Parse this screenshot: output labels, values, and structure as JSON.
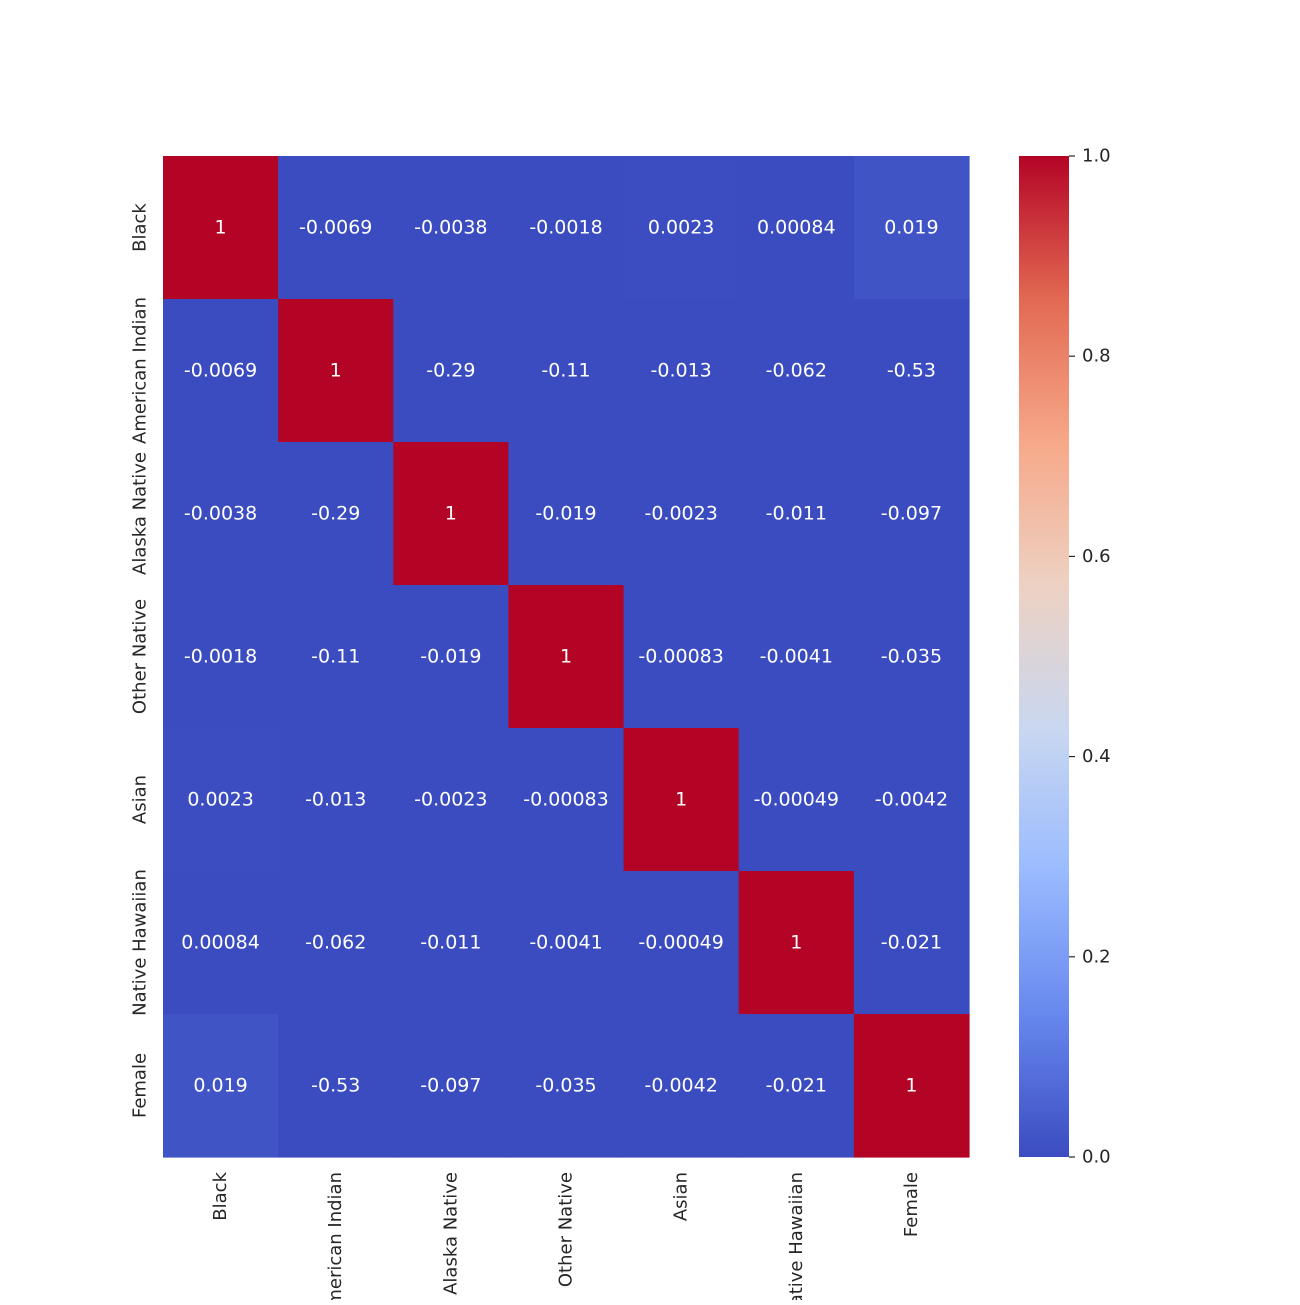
{
  "chart_data": {
    "type": "heatmap",
    "title": "",
    "xlabel": "",
    "ylabel": "",
    "categories": [
      "Black",
      "American Indian",
      "Alaska Native",
      "Other Native",
      "Asian",
      "Native Hawaiian",
      "Female"
    ],
    "values": [
      [
        1,
        -0.0069,
        -0.0038,
        -0.0018,
        0.0023,
        0.00084,
        0.019
      ],
      [
        -0.0069,
        1,
        -0.29,
        -0.11,
        -0.013,
        -0.062,
        -0.53
      ],
      [
        -0.0038,
        -0.29,
        1,
        -0.019,
        -0.0023,
        -0.011,
        -0.097
      ],
      [
        -0.0018,
        -0.11,
        -0.019,
        1,
        -0.00083,
        -0.0041,
        -0.035
      ],
      [
        0.0023,
        -0.013,
        -0.0023,
        -0.00083,
        1,
        -0.00049,
        -0.0042
      ],
      [
        0.00084,
        -0.062,
        -0.011,
        -0.0041,
        -0.00049,
        1,
        -0.021
      ],
      [
        0.019,
        -0.53,
        -0.097,
        -0.035,
        -0.0042,
        -0.021,
        1
      ]
    ],
    "cell_labels": [
      [
        "1",
        "-0.0069",
        "-0.0038",
        "-0.0018",
        "0.0023",
        "0.00084",
        "0.019"
      ],
      [
        "-0.0069",
        "1",
        "-0.29",
        "-0.11",
        "-0.013",
        "-0.062",
        "-0.53"
      ],
      [
        "-0.0038",
        "-0.29",
        "1",
        "-0.019",
        "-0.0023",
        "-0.011",
        "-0.097"
      ],
      [
        "-0.0018",
        "-0.11",
        "-0.019",
        "1",
        "-0.00083",
        "-0.0041",
        "-0.035"
      ],
      [
        "0.0023",
        "-0.013",
        "-0.0023",
        "-0.00083",
        "1",
        "-0.00049",
        "-0.0042"
      ],
      [
        "0.00084",
        "-0.062",
        "-0.011",
        "-0.0041",
        "-0.00049",
        "1",
        "-0.021"
      ],
      [
        "0.019",
        "-0.53",
        "-0.097",
        "-0.035",
        "-0.0042",
        "-0.021",
        "1"
      ]
    ],
    "colorbar": {
      "range": [
        0.0,
        1.0
      ],
      "ticks": [
        0.0,
        0.2,
        0.4,
        0.6,
        0.8,
        1.0
      ],
      "tick_labels": [
        "0.0",
        "0.2",
        "0.4",
        "0.6",
        "0.8",
        "1.0"
      ],
      "colormap": "coolwarm",
      "stops": [
        "#3b4cc0",
        "#6788ee",
        "#9abbff",
        "#c9d7f0",
        "#edd1c2",
        "#f7a889",
        "#e26952",
        "#b40426"
      ],
      "placement": "right"
    },
    "grid": false,
    "legend": "colorbar-right"
  }
}
